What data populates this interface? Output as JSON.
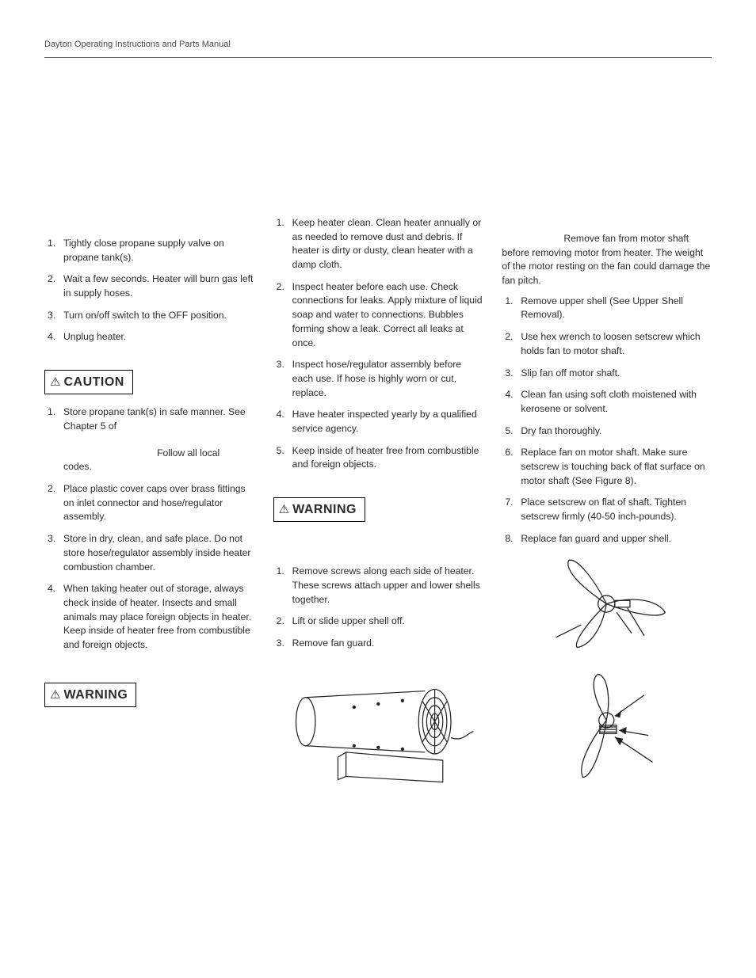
{
  "header": {
    "text": "Dayton Operating Instructions and Parts Manual"
  },
  "callouts": {
    "caution": "CAUTION",
    "warning": "WARNING"
  },
  "col1": {
    "list_a": [
      "Tightly close propane supply valve on propane tank(s).",
      "Wait a few seconds. Heater will burn gas left in supply hoses.",
      "Turn on/off switch to the OFF position.",
      "Unplug heater."
    ],
    "list_b_item1_pre": "Store propane tank(s) in safe manner. See Chapter 5 of",
    "list_b_item1_post": "Follow all local codes.",
    "list_b_rest": [
      "Place plastic cover caps over brass fittings on inlet connector and hose/regulator assembly.",
      "Store in dry, clean, and safe place. Do not store hose/regulator assembly inside heater combustion chamber.",
      "When taking heater out of storage, always check inside of heater. Insects and small animals may place foreign objects in heater. Keep inside of heater free from combustible and foreign objects."
    ]
  },
  "col2": {
    "list_a": [
      "Keep heater clean. Clean heater annually or as needed to remove dust and debris. If heater is dirty or dusty, clean heater with a damp cloth.",
      "Inspect heater before each use. Check connections for leaks. Apply mixture of liquid soap and water to connections. Bubbles forming show a leak. Correct all leaks at once.",
      "Inspect hose/regulator assembly before each use. If hose is highly worn or cut, replace.",
      "Have heater inspected yearly by a qualified service agency.",
      "Keep inside of heater free from combustible and foreign objects."
    ],
    "list_b": [
      "Remove screws along each side of heater. These screws attach upper and lower shells together.",
      "Lift or slide upper shell off.",
      "Remove fan guard."
    ]
  },
  "col3": {
    "intro_indent": "Remove fan from motor",
    "intro_rest": "shaft before removing motor from heater. The weight of the motor resting on the fan could damage the fan pitch.",
    "list": [
      "Remove upper shell (See Upper Shell Removal).",
      "Use hex wrench to loosen setscrew which holds fan to motor shaft.",
      "Slip fan off motor shaft.",
      "Clean fan using soft cloth moistened with kerosene or solvent.",
      "Dry fan thoroughly.",
      "Replace fan on motor shaft. Make sure setscrew is touching back of flat surface on motor shaft (See Figure 8).",
      "Place setscrew on flat of shaft. Tighten setscrew firmly (40-50 inch-pounds).",
      "Replace fan guard and upper shell."
    ]
  },
  "figures": {
    "heater_alt": "heater-upper-shell-removal-diagram",
    "fan1_alt": "fan-blade-top-diagram",
    "fan2_alt": "fan-blade-setscrew-diagram"
  },
  "colors": {
    "text": "#2b2b2b",
    "border": "#000000",
    "rule": "#555555",
    "bg": "#ffffff"
  }
}
